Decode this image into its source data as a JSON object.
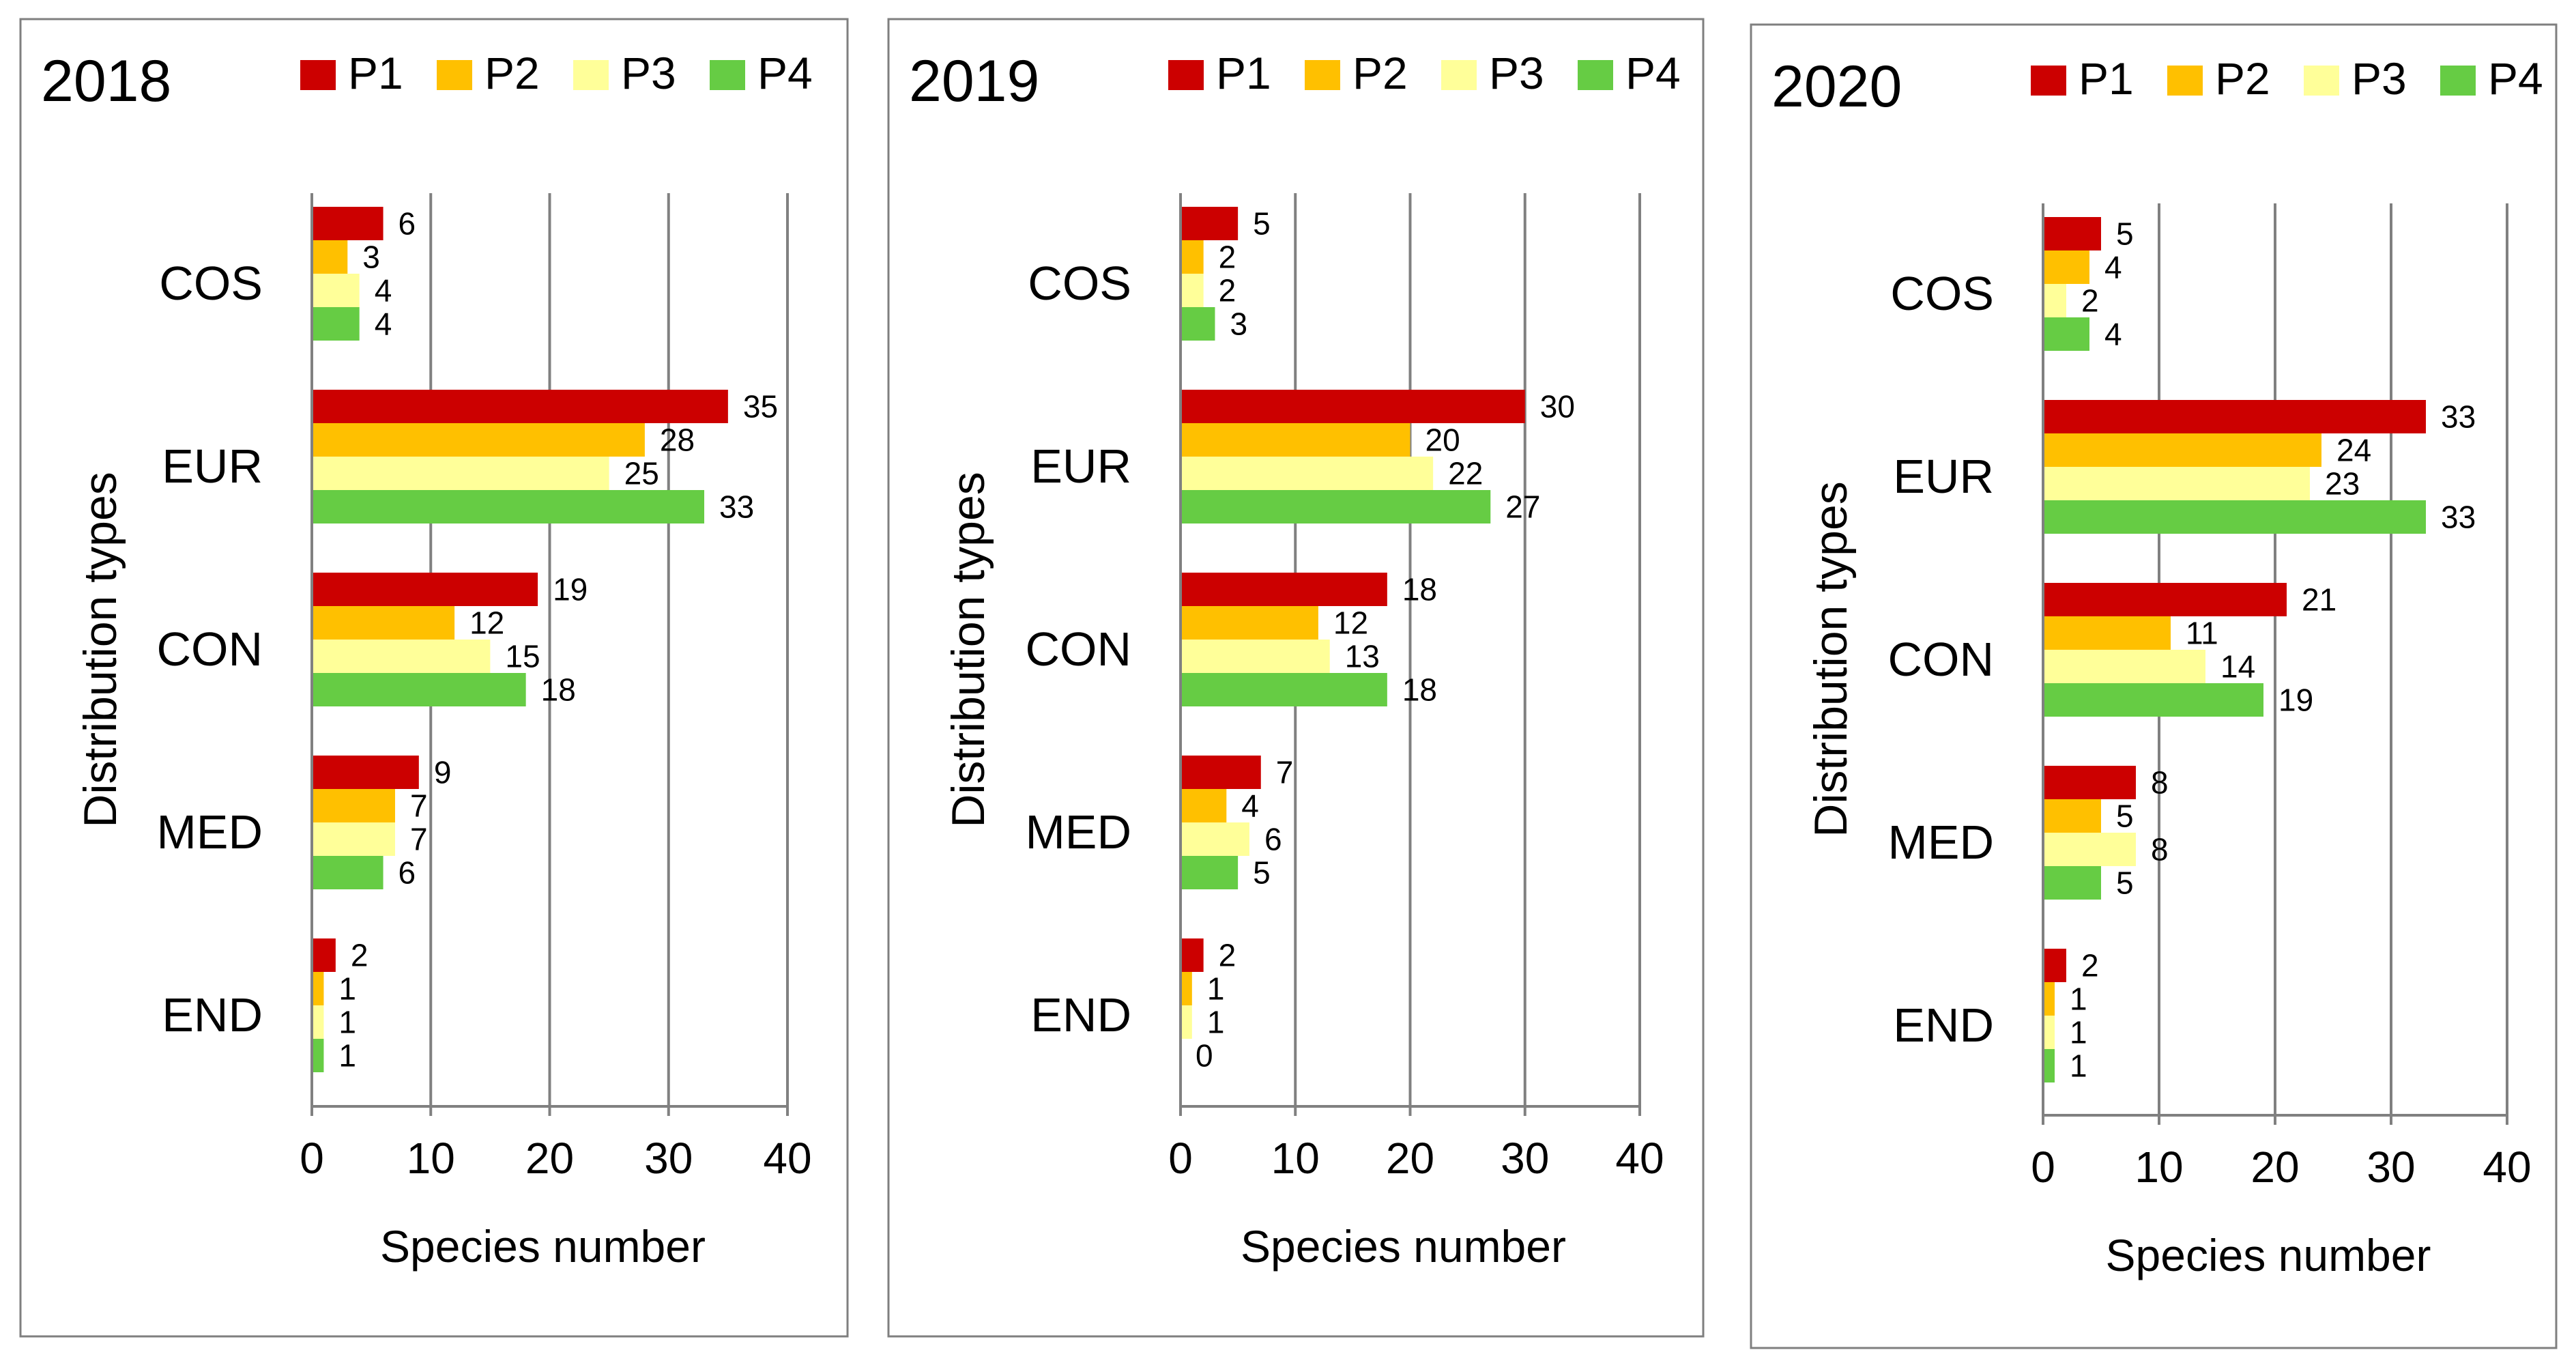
{
  "colors": {
    "P1": "#cc0000",
    "P2": "#ffc000",
    "P3": "#ffff99",
    "P4": "#66cc44",
    "grid": "#808080",
    "frame": "#7f7f7f"
  },
  "chart_data": [
    {
      "type": "bar",
      "orientation": "horizontal",
      "title": "2018",
      "xlabel": "Species number",
      "ylabel": "Distribution types",
      "xlim": [
        0,
        40
      ],
      "xticks": [
        0,
        10,
        20,
        30,
        40
      ],
      "categories": [
        "COS",
        "EUR",
        "CON",
        "MED",
        "END"
      ],
      "legend_position": "top-right",
      "series": [
        {
          "name": "P1",
          "values": [
            6,
            35,
            19,
            9,
            2
          ]
        },
        {
          "name": "P2",
          "values": [
            3,
            28,
            12,
            7,
            1
          ]
        },
        {
          "name": "P3",
          "values": [
            4,
            25,
            15,
            7,
            1
          ]
        },
        {
          "name": "P4",
          "values": [
            4,
            33,
            18,
            6,
            1
          ]
        }
      ]
    },
    {
      "type": "bar",
      "orientation": "horizontal",
      "title": "2019",
      "xlabel": "Species number",
      "ylabel": "Distribution types",
      "xlim": [
        0,
        40
      ],
      "xticks": [
        0,
        10,
        20,
        30,
        40
      ],
      "categories": [
        "COS",
        "EUR",
        "CON",
        "MED",
        "END"
      ],
      "legend_position": "top-right",
      "series": [
        {
          "name": "P1",
          "values": [
            5,
            30,
            18,
            7,
            2
          ]
        },
        {
          "name": "P2",
          "values": [
            2,
            20,
            12,
            4,
            1
          ]
        },
        {
          "name": "P3",
          "values": [
            2,
            22,
            13,
            6,
            1
          ]
        },
        {
          "name": "P4",
          "values": [
            3,
            27,
            18,
            5,
            0
          ]
        }
      ]
    },
    {
      "type": "bar",
      "orientation": "horizontal",
      "title": "2020",
      "xlabel": "Species number",
      "ylabel": "Distribution types",
      "xlim": [
        0,
        40
      ],
      "xticks": [
        0,
        10,
        20,
        30,
        40
      ],
      "categories": [
        "COS",
        "EUR",
        "CON",
        "MED",
        "END"
      ],
      "legend_position": "top-right",
      "series": [
        {
          "name": "P1",
          "values": [
            5,
            33,
            21,
            8,
            2
          ]
        },
        {
          "name": "P2",
          "values": [
            4,
            24,
            11,
            5,
            1
          ]
        },
        {
          "name": "P3",
          "values": [
            2,
            23,
            14,
            8,
            1
          ]
        },
        {
          "name": "P4",
          "values": [
            4,
            33,
            19,
            5,
            1
          ]
        }
      ]
    }
  ]
}
